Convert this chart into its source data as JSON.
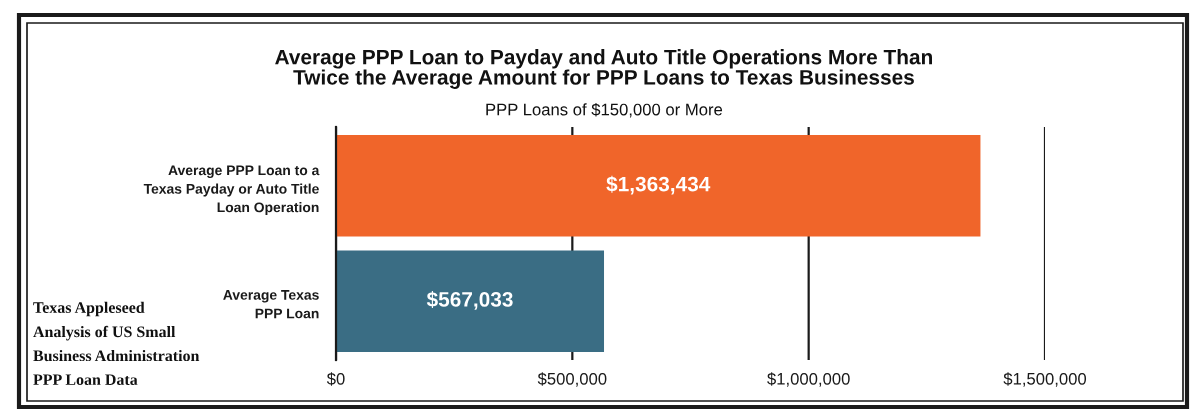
{
  "chart_data": {
    "type": "bar",
    "orientation": "horizontal",
    "title": "Average PPP Loan to Payday and Auto Title Operations More Than\nTwice the Average Amount for PPP Loans to Texas Businesses",
    "subtitle": "PPP Loans of $150,000 or More",
    "categories": [
      "Average PPP Loan to a\nTexas Payday or Auto Title\nLoan Operation",
      "Average Texas\nPPP Loan"
    ],
    "values": [
      1363434,
      567033
    ],
    "colors": [
      "#f0652a",
      "#3a6d84"
    ],
    "value_labels": [
      "$1,363,434",
      "$567,033"
    ],
    "xlim": [
      0,
      1500000
    ],
    "xticks": [
      {
        "value": 0,
        "label": "$0"
      },
      {
        "value": 500000,
        "label": "$500,000"
      },
      {
        "value": 1000000,
        "label": "$1,000,000"
      },
      {
        "value": 1500000,
        "label": "$1,500,000"
      }
    ],
    "grid": "x",
    "annotations": [
      "Texas Appleseed\nAnalysis of US Small\nBusiness Administration\nPPP Loan Data"
    ]
  }
}
